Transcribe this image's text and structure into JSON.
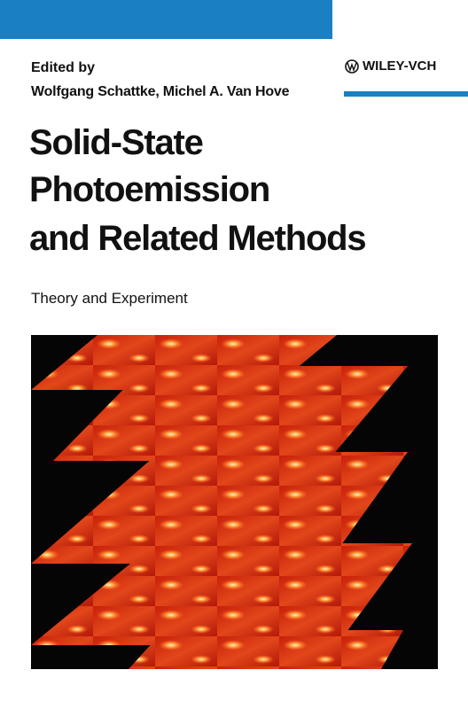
{
  "cover": {
    "edited_by": "Edited by",
    "editors": "Wolfgang Schattke, Michel A. Van Hove",
    "publisher": "WILEY-VCH",
    "title_lines": [
      "Solid-State",
      "Photoemission",
      "and Related Methods"
    ],
    "subtitle": "Theory and Experiment"
  }
}
